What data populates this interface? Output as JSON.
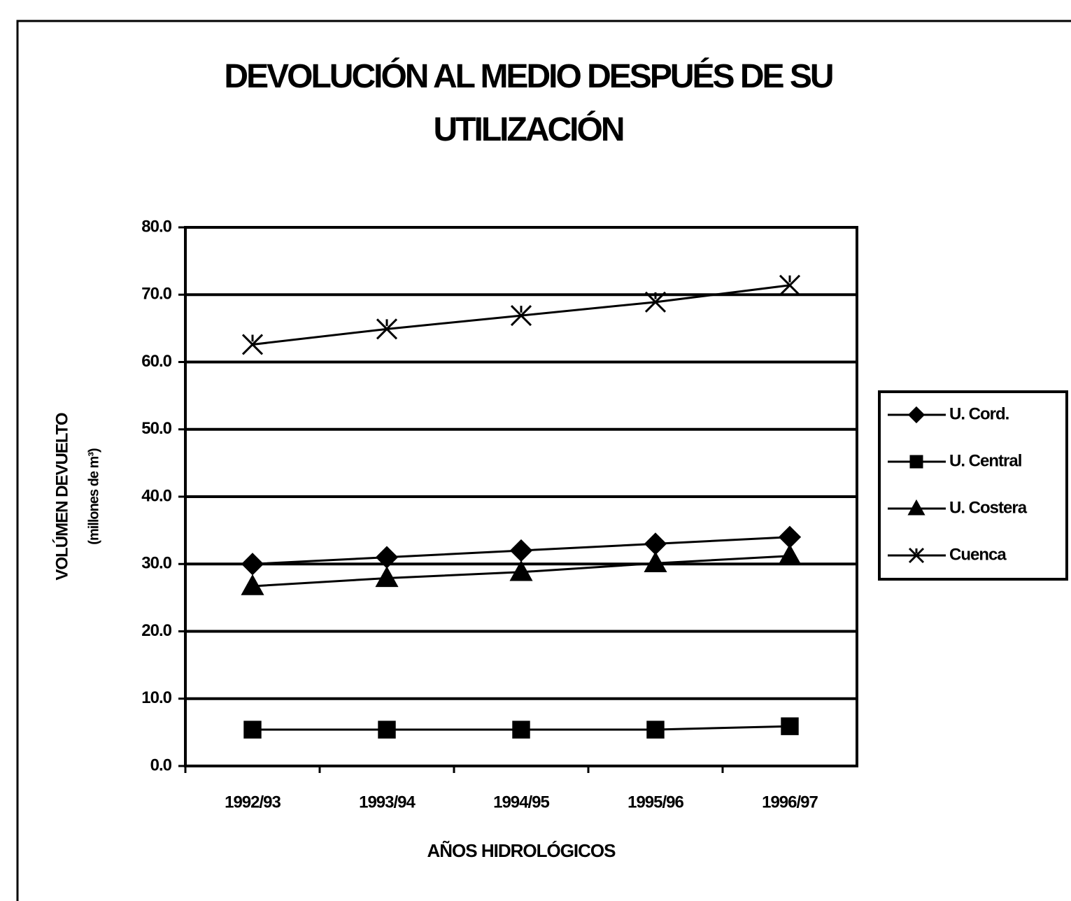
{
  "chart_data": {
    "type": "line",
    "title": "DEVOLUCIÓN AL MEDIO DESPUÉS DE SU UTILIZACIÓN",
    "y_label": "VOLÚMEN DEVUELTO",
    "y_sublabel": "(millones de m³)",
    "x_label": "AÑOS HIDROLÓGICOS",
    "categories": [
      "1992/93",
      "1993/94",
      "1994/95",
      "1995/96",
      "1996/97"
    ],
    "series": [
      {
        "name": "U. Cord.",
        "color": "#000000",
        "marker": "diamond",
        "values": [
          30,
          31,
          32,
          33,
          34
        ]
      },
      {
        "name": "U. Central",
        "color": "#000000",
        "marker": "square",
        "values": [
          5.4,
          5.4,
          5.4,
          5.4,
          5.9
        ]
      },
      {
        "name": "U. Costera",
        "color": "#000000",
        "marker": "triangle",
        "values": [
          26.7,
          27.9,
          28.8,
          30.1,
          31.2
        ]
      },
      {
        "name": "Cuenca",
        "color": "#000000",
        "marker": "x",
        "values": [
          62.6,
          64.9,
          66.9,
          68.9,
          71.4
        ]
      }
    ],
    "ylim": [
      0,
      80
    ],
    "yticks": [
      {
        "value": 0,
        "label": "0.0"
      },
      {
        "value": 10,
        "label": "10.0"
      },
      {
        "value": 20,
        "label": "20.0"
      },
      {
        "value": 30,
        "label": "30.0"
      },
      {
        "value": 40,
        "label": "40.0"
      },
      {
        "value": 50,
        "label": "50.0"
      },
      {
        "value": 60,
        "label": "60.0"
      },
      {
        "value": 70,
        "label": "70.0"
      },
      {
        "value": 80,
        "label": "80.0"
      }
    ],
    "grid": true,
    "legend": "right"
  }
}
